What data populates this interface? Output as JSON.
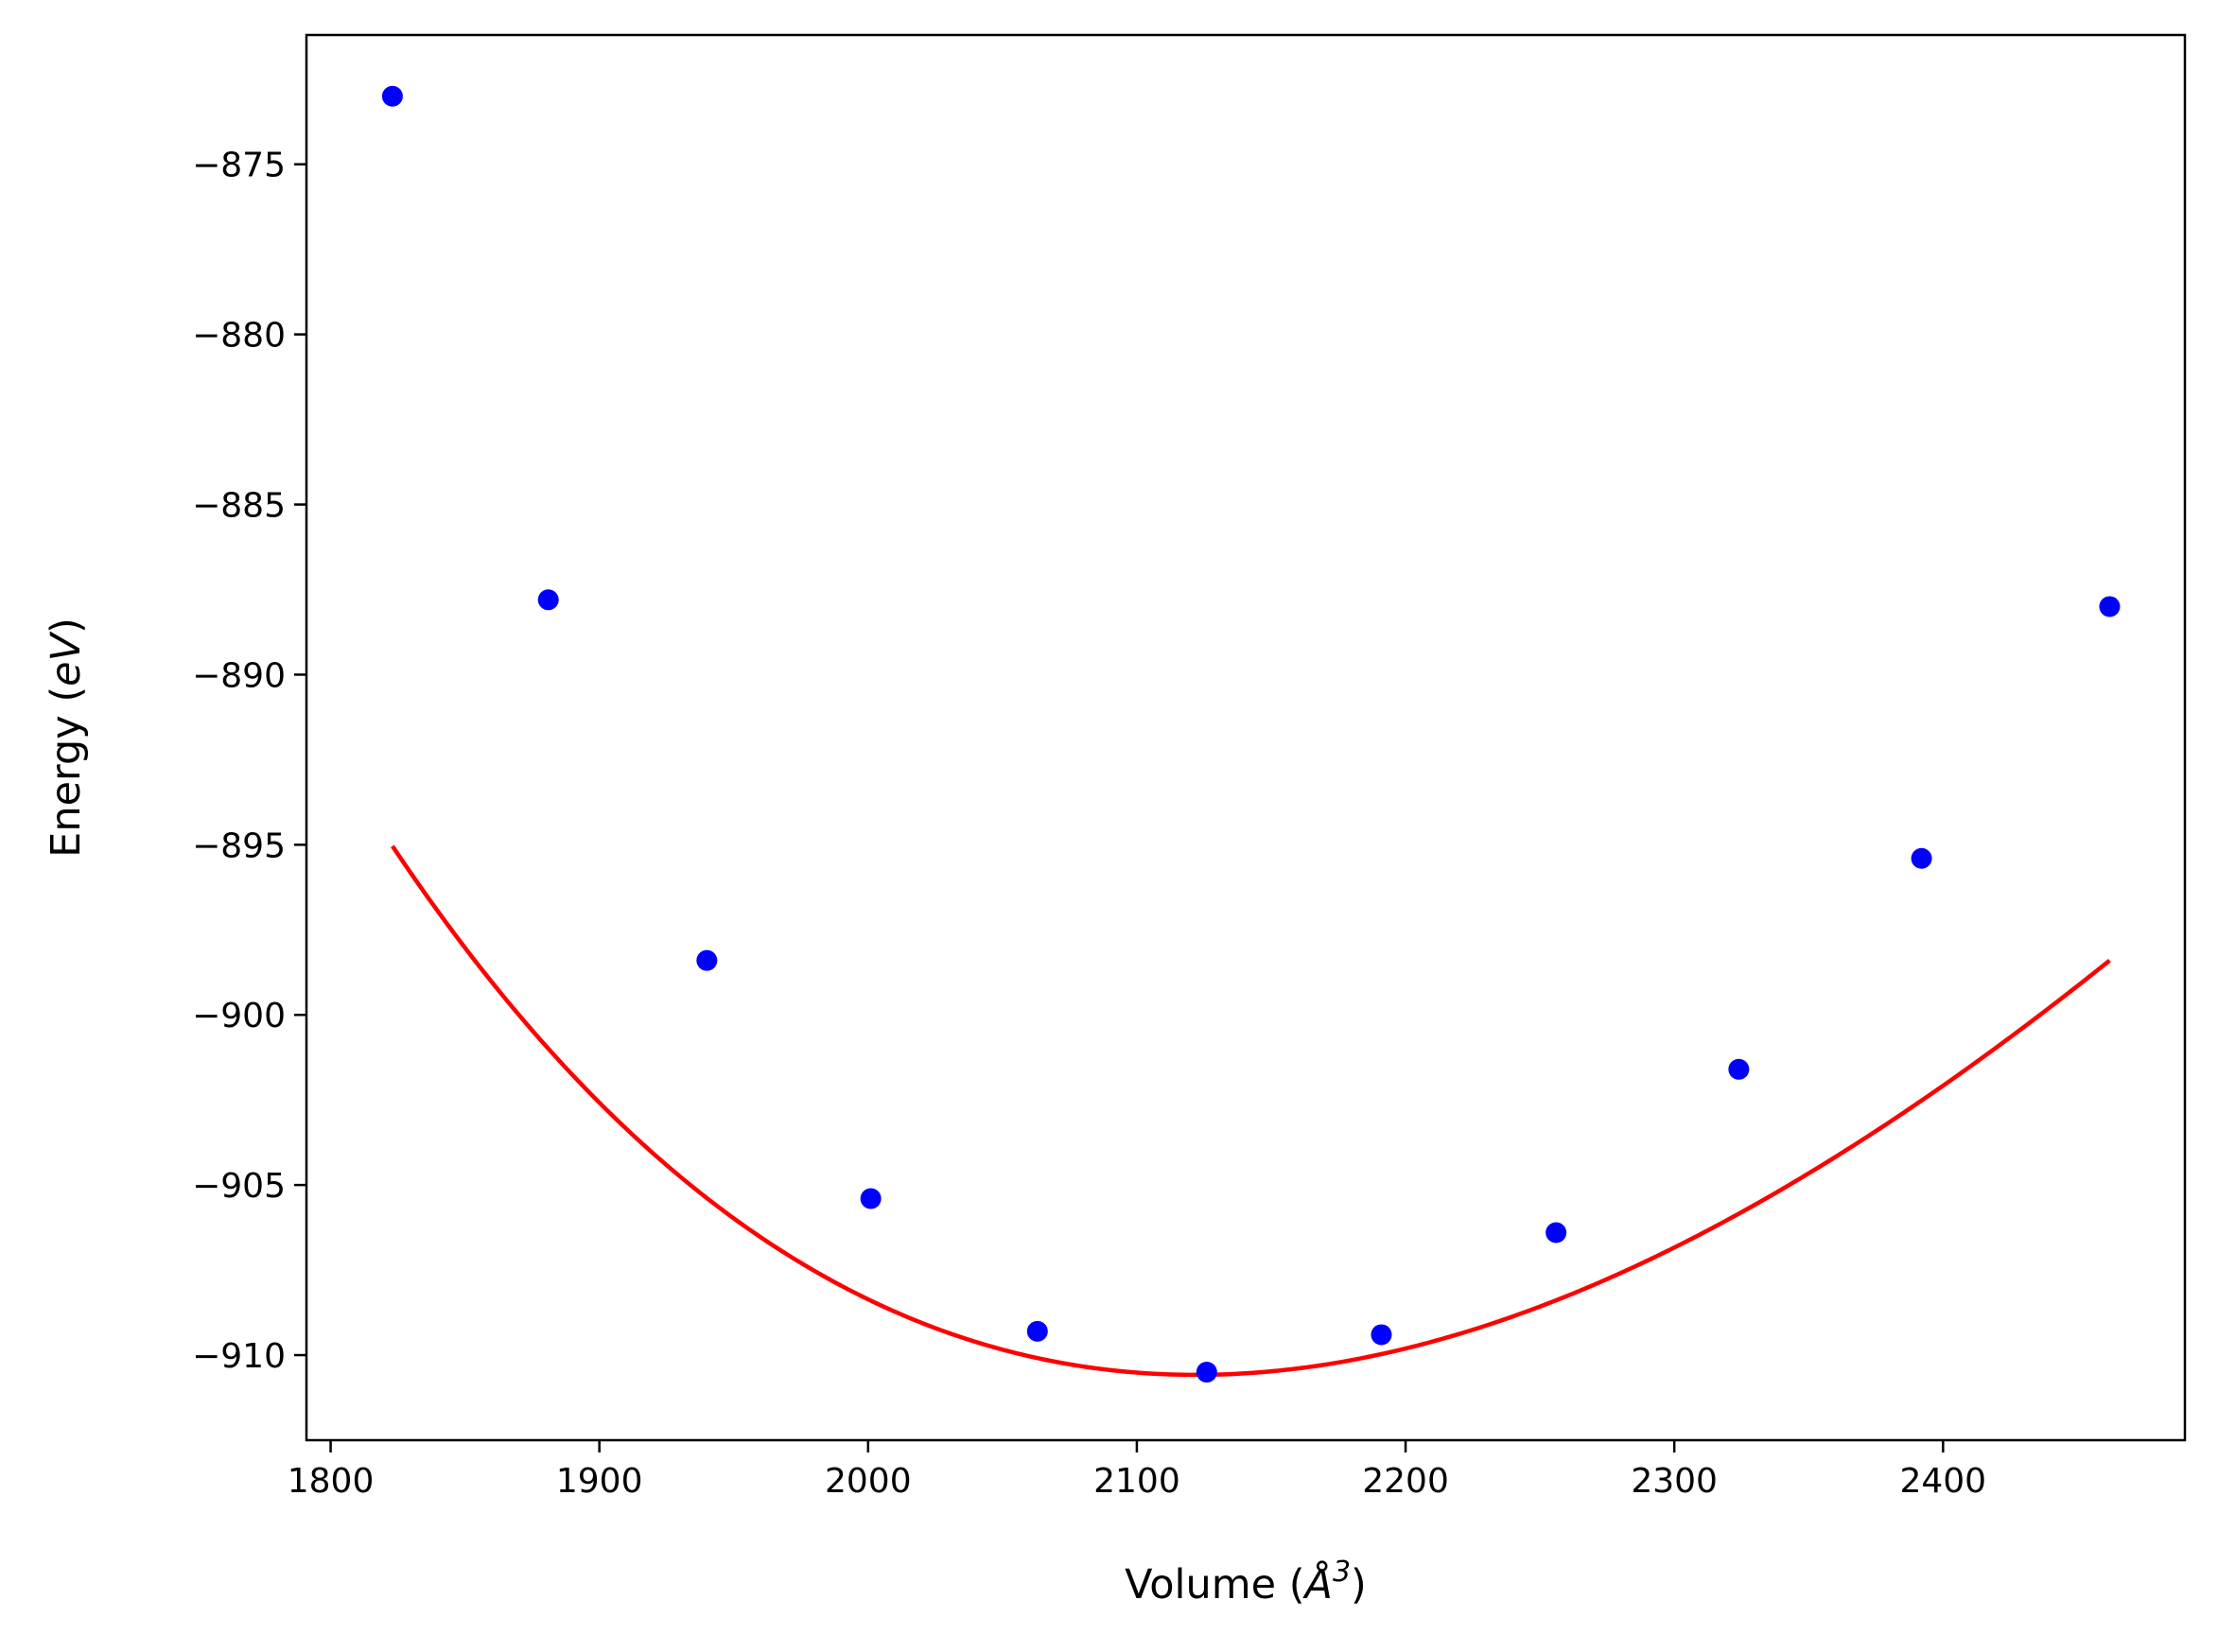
{
  "chart_data": {
    "type": "scatter",
    "title": "",
    "xlabel_prefix": "Volume (",
    "xlabel_unit": "Å",
    "xlabel_exp": "3",
    "xlabel_suffix": ")",
    "ylabel_prefix": "Energy (",
    "ylabel_unit": "eV",
    "ylabel_suffix": ")",
    "xlim": [
      1791,
      2490
    ],
    "ylim": [
      -912.5,
      -871.2
    ],
    "xticks": [
      1800,
      1900,
      2000,
      2100,
      2200,
      2300,
      2400
    ],
    "yticks": [
      -875,
      -880,
      -885,
      -890,
      -895,
      -900,
      -905,
      -910
    ],
    "grid": false,
    "legend": "none",
    "colors": {
      "points": "#0000ff",
      "fit": "#ff0000"
    },
    "series": [
      {
        "style": "points",
        "x": [
          1823,
          1881,
          1940,
          2001,
          2063,
          2126,
          2191,
          2256,
          2324,
          2392,
          2462
        ],
        "y": [
          -873.0,
          -887.8,
          -898.4,
          -905.4,
          -909.3,
          -910.5,
          -909.4,
          -906.4,
          -901.6,
          -895.4,
          -888.0
        ]
      },
      {
        "style": "fit-curve",
        "model": "birch-murnaghan",
        "E0": -910.58,
        "V0": 2122,
        "B0": 0.5734,
        "B0_prime": 4.0
      }
    ]
  }
}
